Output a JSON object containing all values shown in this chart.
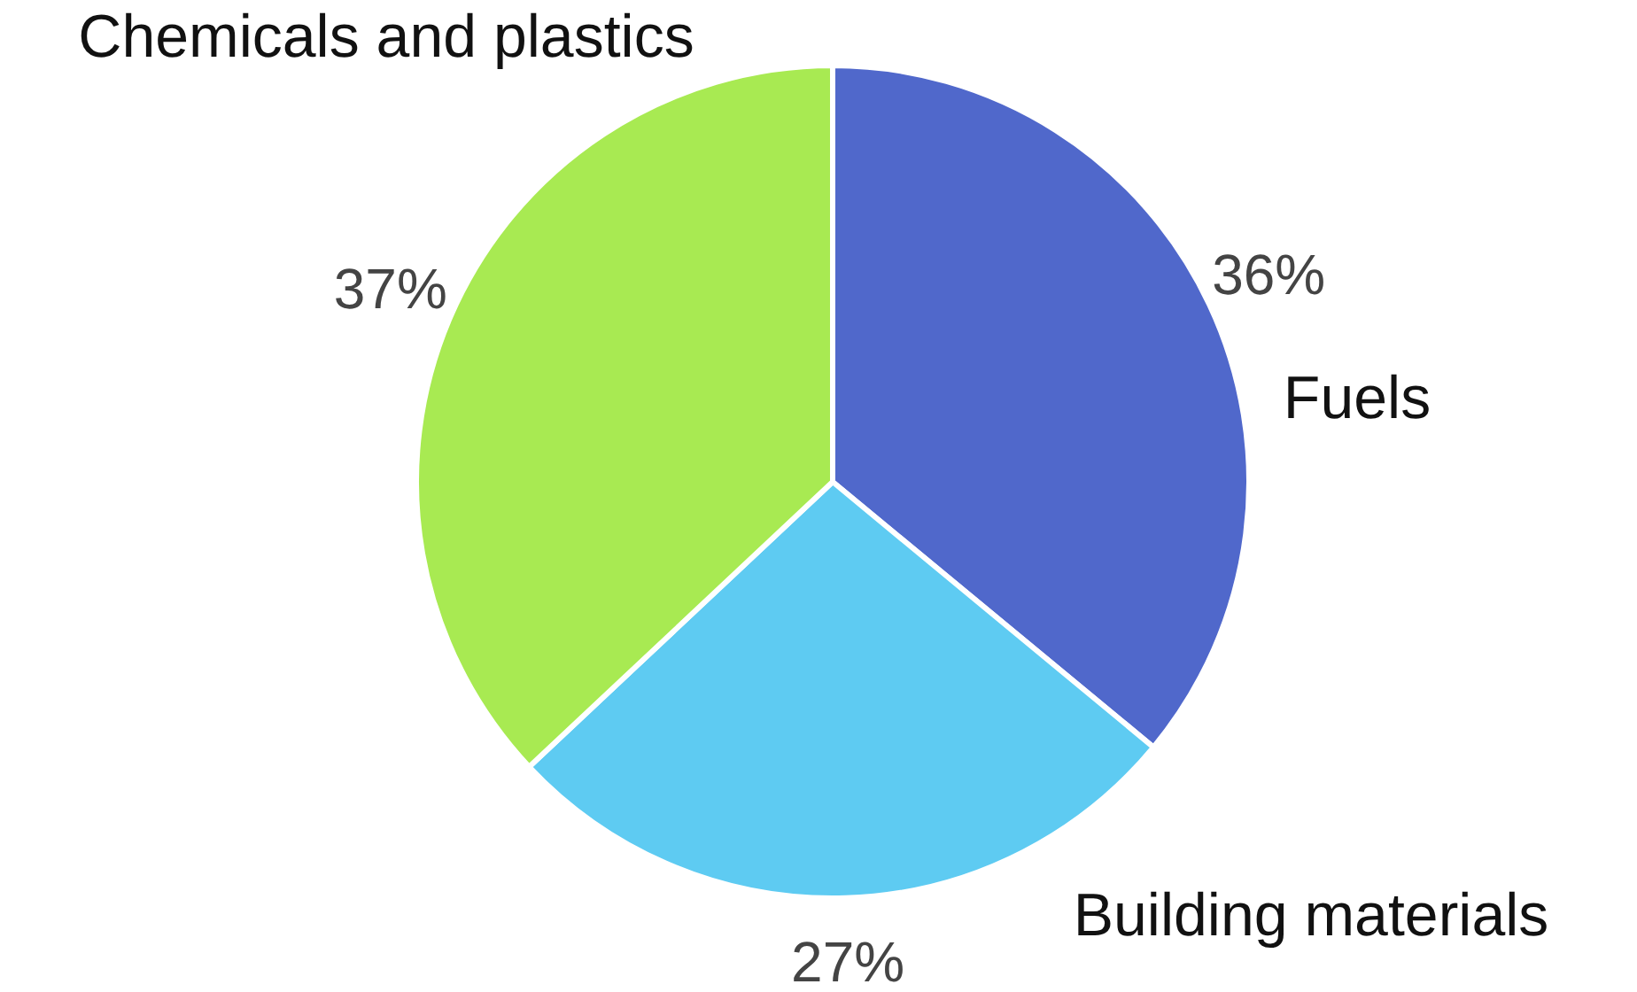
{
  "chart_data": {
    "type": "pie",
    "categories": [
      "Fuels",
      "Building materials",
      "Chemicals and plastics"
    ],
    "values": [
      36,
      27,
      37
    ],
    "colors": [
      "#5068cb",
      "#5ecbf2",
      "#a8ea52"
    ],
    "value_labels": [
      "36%",
      "27%",
      "37%"
    ]
  }
}
